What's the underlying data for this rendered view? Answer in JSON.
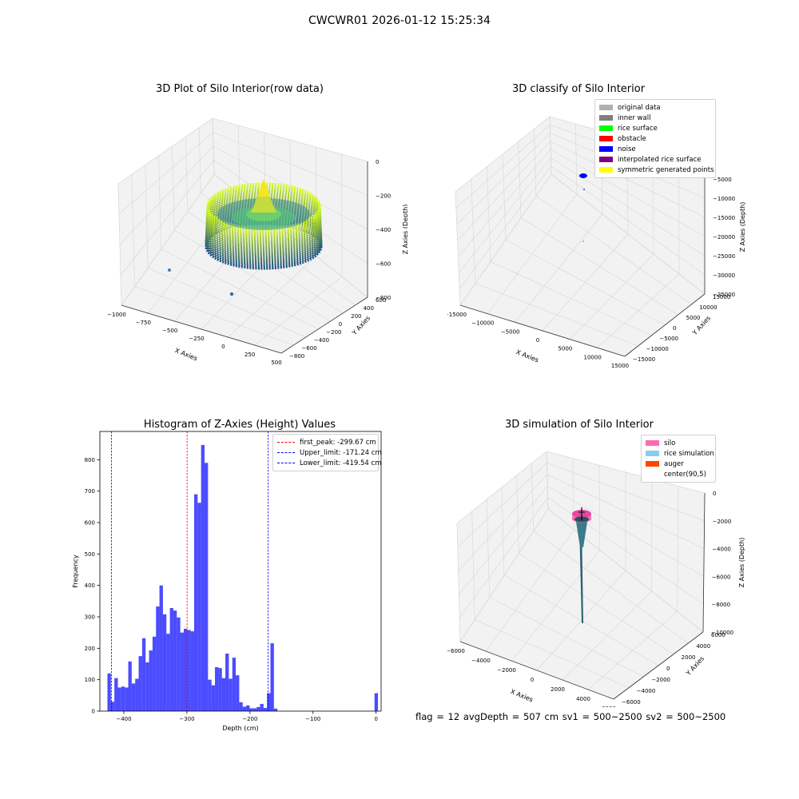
{
  "suptitle": "CWCWR01 2026-01-12 15:25:34",
  "footer": "flag = 12   avgDepth = 507 cm   sv1 = 500~2500   sv2 = 500~2500",
  "panels": {
    "raw3d": {
      "title": "3D Plot of Silo Interior(row data)",
      "xlabel": "X Axies",
      "ylabel": "Y Axies",
      "zlabel": "Z Axies (Depth)",
      "xticks": [
        "−1000",
        "−750",
        "−500",
        "−250",
        "0",
        "250",
        "500"
      ],
      "yticks": [
        "−800",
        "−600",
        "−400",
        "−200",
        "0",
        "200",
        "400",
        "600"
      ],
      "zticks": [
        "0",
        "−200",
        "−400",
        "−600",
        "−800"
      ]
    },
    "classify3d": {
      "title": "3D classify of Silo Interior",
      "xlabel": "X Axies",
      "ylabel": "Y Axies",
      "zlabel": "Z Axies (Depth)",
      "xticks": [
        "−15000",
        "−10000",
        "−5000",
        "0",
        "5000",
        "10000",
        "15000"
      ],
      "yticks": [
        "−15000",
        "−10000",
        "−5000",
        "0",
        "5000",
        "10000",
        "15000"
      ],
      "zticks": [
        "0",
        "−5000",
        "−10000",
        "−15000",
        "−20000",
        "−25000",
        "−30000",
        "−35000"
      ],
      "legend": [
        {
          "label": "original data",
          "color": "#b0b0b0"
        },
        {
          "label": "inner wall",
          "color": "#808080"
        },
        {
          "label": "rice surface",
          "color": "#00ff00"
        },
        {
          "label": "obstacle",
          "color": "#ff0000"
        },
        {
          "label": "noise",
          "color": "#0000ff"
        },
        {
          "label": "interpolated rice surface",
          "color": "#800080"
        },
        {
          "label": "symmetric generated points",
          "color": "#ffff00"
        }
      ]
    },
    "simulation3d": {
      "title": "3D simulation of Silo Interior",
      "xlabel": "X Axies",
      "ylabel": "Y Axies",
      "zlabel": "Z Axies (Depth)",
      "xticks": [
        "−6000",
        "−4000",
        "−2000",
        "0",
        "2000",
        "4000",
        "6000"
      ],
      "yticks": [
        "−6000",
        "−4000",
        "−2000",
        "0",
        "2000",
        "4000",
        "6000"
      ],
      "zticks": [
        "0",
        "−2000",
        "−4000",
        "−6000",
        "−8000",
        "−10000"
      ],
      "legend": [
        {
          "label": "silo",
          "color": "#ff69b4"
        },
        {
          "label": "rice simulation",
          "color": "#87ceeb"
        },
        {
          "label": "auger",
          "color": "#ff4500"
        },
        {
          "label": "center(90,5)",
          "color": ""
        }
      ]
    }
  },
  "chart_data": [
    {
      "type": "bar",
      "title": "Histogram of Z-Axies (Height) Values",
      "xlabel": "Depth (cm)",
      "ylabel": "Frequency",
      "xlim": [
        -438,
        8
      ],
      "ylim": [
        0,
        890
      ],
      "xticks": [
        -400,
        -300,
        -200,
        -100,
        0
      ],
      "yticks": [
        0,
        100,
        200,
        300,
        400,
        500,
        600,
        700,
        800
      ],
      "bar_color": "#0000ff",
      "bar_alpha": 0.7,
      "bin_edges": [
        -426,
        -420.5,
        -415,
        -409.5,
        -404,
        -398.5,
        -393,
        -387.5,
        -382,
        -376.5,
        -371,
        -365.5,
        -360,
        -354.5,
        -349,
        -343.5,
        -338,
        -332.5,
        -327,
        -321.5,
        -316,
        -310.5,
        -305,
        -299.5,
        -294,
        -288.5,
        -283,
        -277.5,
        -272,
        -266.5,
        -261,
        -255.5,
        -250,
        -244.5,
        -239,
        -233.5,
        -228,
        -222.5,
        -217,
        -211.5,
        -206,
        -200.5,
        -195,
        -189.5,
        -184,
        -178.5,
        -173,
        -167.5,
        -162,
        -156.5,
        -151,
        -145.5,
        -140,
        -134.5,
        -129,
        -123.5,
        -118,
        -112.5,
        -107,
        -101.5,
        -96,
        -90.5,
        -85,
        -79.5,
        -74,
        -68.5,
        -63,
        -57.5,
        -52,
        -46.5,
        -41,
        -35.5,
        -30,
        -24.5,
        -19,
        -13.5,
        -8,
        -2.5,
        3
      ],
      "values": [
        120,
        30,
        105,
        75,
        78,
        75,
        158,
        88,
        103,
        175,
        232,
        155,
        193,
        237,
        333,
        400,
        308,
        246,
        328,
        320,
        298,
        250,
        262,
        258,
        254,
        690,
        663,
        847,
        790,
        100,
        82,
        140,
        137,
        105,
        183,
        103,
        170,
        114,
        28,
        14,
        18,
        9,
        9,
        13,
        23,
        10,
        57,
        216,
        8,
        0,
        0,
        0,
        0,
        0,
        0,
        0,
        0,
        0,
        0,
        0,
        0,
        0,
        0,
        0,
        0,
        0,
        0,
        0,
        0,
        0,
        0,
        0,
        0,
        0,
        0,
        0,
        0,
        57
      ],
      "vlines": [
        {
          "label": "first_peak: -299.67 cm",
          "x": -299.67,
          "color": "#ff0000"
        },
        {
          "label": "Upper_limit: -171.24 cm",
          "x": -171.24,
          "color": "#0000ff"
        },
        {
          "label": "Lower_limit: -419.54 cm",
          "x": -419.54,
          "color": "#0000ff"
        }
      ],
      "legend_position": "upper right"
    }
  ]
}
